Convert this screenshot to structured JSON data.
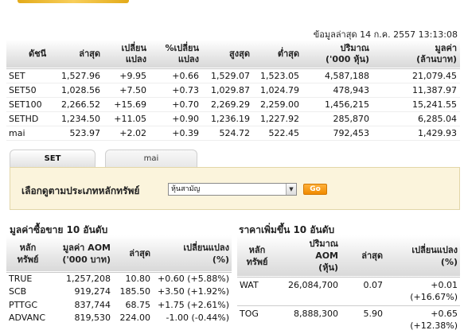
{
  "timestamp": "ข้อมูลล่าสุด 14 ก.ค. 2557 13:13:08",
  "index_table": {
    "headers": [
      {
        "line1": "ดัชนี",
        "line2": ""
      },
      {
        "line1": "ล่าสุด",
        "line2": ""
      },
      {
        "line1": "เปลี่ยน",
        "line2": "แปลง"
      },
      {
        "line1": "%เปลี่ยน",
        "line2": "แปลง"
      },
      {
        "line1": "สูงสุด",
        "line2": ""
      },
      {
        "line1": "ต่ำสุด",
        "line2": ""
      },
      {
        "line1": "ปริมาณ",
        "line2": "('000 หุ้น)"
      },
      {
        "line1": "มูลค่า",
        "line2": "(ล้านบาท)"
      }
    ],
    "rows": [
      {
        "name": "SET",
        "last": "1,527.96",
        "change": "+9.95",
        "pct": "+0.66",
        "high": "1,529.07",
        "low": "1,523.05",
        "volume": "4,587,188",
        "value": "21,079.45",
        "link": false
      },
      {
        "name": "SET50",
        "last": "1,028.56",
        "change": "+7.50",
        "pct": "+0.73",
        "high": "1,029.87",
        "low": "1,024.79",
        "volume": "478,943",
        "value": "11,387.97",
        "link": true
      },
      {
        "name": "SET100",
        "last": "2,266.52",
        "change": "+15.69",
        "pct": "+0.70",
        "high": "2,269.29",
        "low": "2,259.00",
        "volume": "1,456,215",
        "value": "15,241.55",
        "link": true
      },
      {
        "name": "SETHD",
        "last": "1,234.50",
        "change": "+11.05",
        "pct": "+0.90",
        "high": "1,236.19",
        "low": "1,227.92",
        "volume": "285,870",
        "value": "6,285.04",
        "link": true
      },
      {
        "name": "mai",
        "last": "523.97",
        "change": "+2.02",
        "pct": "+0.39",
        "high": "524.72",
        "low": "522.45",
        "volume": "792,453",
        "value": "1,429.93",
        "link": false
      }
    ]
  },
  "tabs": [
    {
      "label": "SET",
      "active": true
    },
    {
      "label": "mai",
      "active": false
    }
  ],
  "filter": {
    "label": "เลือกดูตามประเภทหลักทรัพย์",
    "selected": "หุ้นสามัญ",
    "go_label": "Go"
  },
  "top_value": {
    "title": "มูลค่าซื้อขาย 10 อันดับ",
    "headers": [
      {
        "line1": "หลัก",
        "line2": "ทรัพย์"
      },
      {
        "line1": "มูลค่า AOM",
        "line2": "('000 บาท)"
      },
      {
        "line1": "ล่าสุด",
        "line2": ""
      },
      {
        "line1": "เปลี่ยนแปลง",
        "line2": "(%)"
      }
    ],
    "rows": [
      {
        "symbol": "TRUE",
        "aom": "1,257,208",
        "last": "10.80",
        "change": "+0.60 (+5.88%)",
        "dir": "pos"
      },
      {
        "symbol": "SCB",
        "aom": "919,274",
        "last": "185.50",
        "change": "+3.50 (+1.92%)",
        "dir": "pos"
      },
      {
        "symbol": "PTTGC",
        "aom": "837,744",
        "last": "68.75",
        "change": "+1.75 (+2.61%)",
        "dir": "pos"
      },
      {
        "symbol": "ADVANC",
        "aom": "819,530",
        "last": "224.00",
        "change": "-1.00 (-0.44%)",
        "dir": "neg"
      }
    ]
  },
  "top_gainers": {
    "title": "ราคาเพิ่มขึ้น 10 อันดับ",
    "headers": [
      {
        "line1": "หลัก",
        "line2": "ทรัพย์",
        "line3": ""
      },
      {
        "line1": "ปริมาณ",
        "line2": "AOM",
        "line3": "(หุ้น)"
      },
      {
        "line1": "ล่าสุด",
        "line2": "",
        "line3": ""
      },
      {
        "line1": "เปลี่ยนแปลง",
        "line2": "(%)",
        "line3": ""
      }
    ],
    "rows": [
      {
        "symbol": "WAT",
        "aom": "26,084,700",
        "last": "0.07",
        "change": "+0.01",
        "pct": "(+16.67%)"
      },
      {
        "symbol": "TOG",
        "aom": "8,888,300",
        "last": "5.90",
        "change": "+0.65",
        "pct": "(+12.38%)"
      }
    ]
  },
  "colors": {
    "positive": "#1a9a1a",
    "negative": "#d00000",
    "link": "#1a3fa3",
    "go_button": "#f08a00",
    "filter_bg": "#fbf4dc"
  }
}
